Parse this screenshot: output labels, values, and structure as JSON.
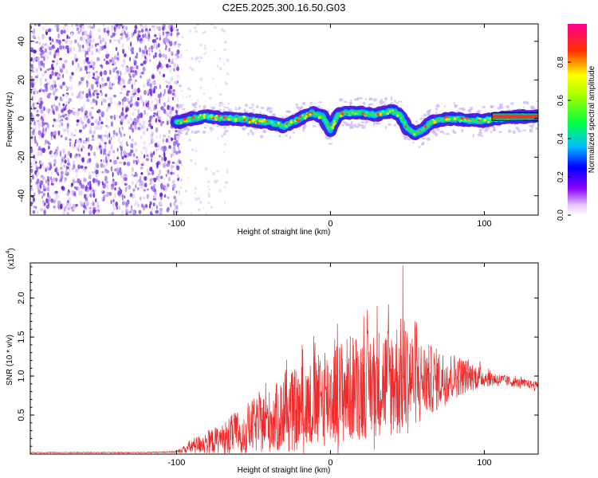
{
  "title": "C2E5.2025.300.16.50.G03",
  "colors": {
    "signal": "#ee2a2a",
    "scatter": "#7a2ee0",
    "stripe_center": "#ff2a2a"
  },
  "chart_data": [
    {
      "type": "heatmap",
      "name": "spectrogram",
      "title": "C2E5.2025.300.16.50.G03",
      "xlabel": "Height of straight line (km)",
      "ylabel": "Frequency (Hz)",
      "xlim": [
        -195,
        135
      ],
      "ylim": [
        -50,
        49
      ],
      "x_ticks": [
        -100,
        0,
        100
      ],
      "x_tick_labels": [
        "-100",
        "0",
        "100"
      ],
      "y_ticks": [
        -40,
        -20,
        0,
        20,
        40
      ],
      "y_tick_labels": [
        "-40",
        "-20",
        "0",
        "20",
        "40"
      ],
      "noise_region_x": [
        -195,
        -97
      ],
      "ridge": {
        "x": [
          -100,
          -90,
          -80,
          -70,
          -60,
          -50,
          -40,
          -30,
          -20,
          -12,
          -5,
          0,
          5,
          10,
          20,
          30,
          40,
          45,
          50,
          55,
          60,
          65,
          70,
          80,
          90,
          100,
          110,
          120,
          135
        ],
        "y": [
          -2,
          0,
          1,
          0,
          0,
          -1,
          -2,
          -4,
          0,
          3,
          1,
          -6,
          2,
          3,
          3,
          2,
          4,
          2,
          -5,
          -8,
          -6,
          -2,
          -1,
          0,
          -1,
          -1,
          0,
          1,
          1
        ]
      },
      "colorbar": {
        "label": "Normalized spectral amplitude",
        "ticks": [
          0.0,
          0.2,
          0.4,
          0.6,
          0.8
        ],
        "tick_labels": [
          "0.0",
          "0.2",
          "0.4",
          "0.6",
          "0.8"
        ],
        "range": [
          0,
          1
        ]
      }
    },
    {
      "type": "line",
      "name": "snr",
      "xlabel": "Height of straight line (km)",
      "ylabel": "SNR (10 * v/v)",
      "y_exponent_label": "(x10",
      "y_exponent": "4",
      "xlim": [
        -195,
        135
      ],
      "ylim": [
        0,
        2.45
      ],
      "x_ticks": [
        -100,
        0,
        100
      ],
      "x_tick_labels": [
        "-100",
        "0",
        "100"
      ],
      "y_ticks": [
        0.5,
        1.0,
        1.5,
        2.0
      ],
      "y_tick_labels": [
        "0.5",
        "1.0",
        "1.5",
        "2.0"
      ],
      "envelope": {
        "x": [
          -195,
          -120,
          -100,
          -95,
          -90,
          -80,
          -70,
          -60,
          -50,
          -40,
          -30,
          -20,
          -10,
          0,
          10,
          20,
          30,
          40,
          48,
          55,
          60,
          70,
          80,
          90,
          100,
          110,
          120,
          135
        ],
        "mean": [
          0.02,
          0.02,
          0.03,
          0.06,
          0.1,
          0.15,
          0.2,
          0.28,
          0.36,
          0.42,
          0.5,
          0.58,
          0.65,
          0.75,
          0.82,
          0.88,
          0.92,
          0.95,
          0.98,
          0.96,
          0.95,
          0.95,
          1.0,
          1.0,
          0.98,
          0.95,
          0.92,
          0.88
        ],
        "amp": [
          0.005,
          0.005,
          0.01,
          0.05,
          0.1,
          0.15,
          0.2,
          0.3,
          0.35,
          0.4,
          0.5,
          0.55,
          0.6,
          0.65,
          0.7,
          0.7,
          0.7,
          0.75,
          0.8,
          0.6,
          0.5,
          0.4,
          0.3,
          0.2,
          0.12,
          0.08,
          0.06,
          0.05
        ],
        "peak": {
          "x": 47,
          "y": 2.42
        }
      }
    }
  ]
}
